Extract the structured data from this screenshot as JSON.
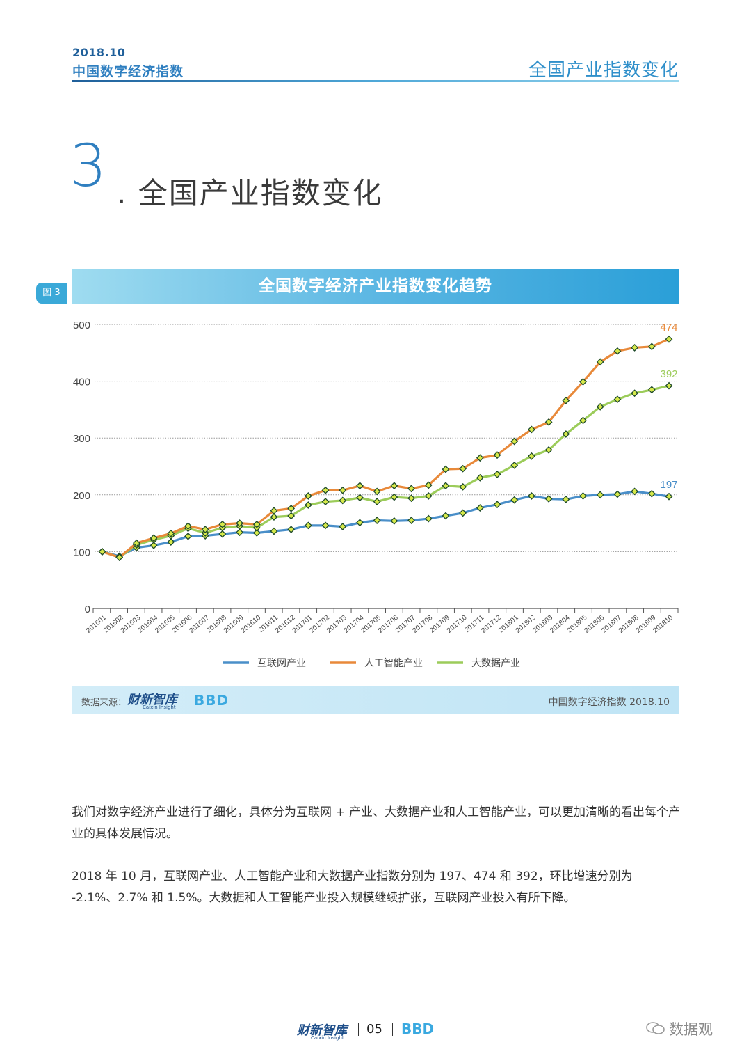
{
  "header": {
    "date": "2018.10",
    "report_title": "中国数字经济指数",
    "section_right": "全国产业指数变化"
  },
  "section": {
    "number": "3",
    "title": ". 全国产业指数变化"
  },
  "figure": {
    "tag": "图 3",
    "banner_title": "全国数字经济产业指数变化趋势"
  },
  "source": {
    "label": "数据来源：",
    "logo_text": "财新智库",
    "logo_sub": "Caixin Insight",
    "bbd_text": "BBD",
    "right_text": "中国数字经济指数 2018.10"
  },
  "paragraphs": [
    "我们对数字经济产业进行了细化，具体分为互联网 + 产业、大数据产业和人工智能产业，可以更加清晰的看出每个产业的具体发展情况。",
    "2018 年 10 月，互联网产业、人工智能产业和大数据产业指数分别为 197、474 和 392，环比增速分别为 -2.1%、2.7% 和 1.5%。大数据和人工智能产业投入规模继续扩张，互联网产业投入有所下降。"
  ],
  "footer": {
    "logo_text": "财新智库",
    "logo_sub": "Caixin Insight",
    "page": "05",
    "bbd_text": "BBD"
  },
  "watermark": {
    "text": "数据观"
  },
  "colors": {
    "internet": "#4a8fc9",
    "ai": "#e8893a",
    "bigdata": "#9ccc5a",
    "marker_fill": "#d6e94a",
    "marker_stroke": "#1e4a2a",
    "accent": "#2f8fca"
  },
  "chart_data": {
    "type": "line",
    "title": "全国数字经济产业指数变化趋势",
    "xlabel": "",
    "ylabel": "",
    "ylim": [
      0,
      500
    ],
    "yticks": [
      0,
      100,
      200,
      300,
      400,
      500
    ],
    "grid": true,
    "legend_position": "bottom",
    "categories": [
      "201601",
      "201602",
      "201603",
      "201604",
      "201605",
      "201606",
      "201607",
      "201608",
      "201609",
      "201610",
      "201611",
      "201612",
      "201701",
      "201702",
      "201703",
      "201704",
      "201705",
      "201706",
      "201707",
      "201708",
      "201709",
      "201710",
      "201711",
      "201712",
      "201801",
      "201802",
      "201803",
      "201804",
      "201805",
      "201806",
      "201807",
      "201808",
      "201809",
      "201810"
    ],
    "series": [
      {
        "name": "互联网产业",
        "key": "internet",
        "values": [
          100,
          92,
          107,
          111,
          117,
          127,
          128,
          131,
          134,
          133,
          136,
          139,
          146,
          146,
          144,
          151,
          155,
          154,
          155,
          158,
          163,
          168,
          177,
          183,
          191,
          198,
          193,
          192,
          198,
          200,
          201,
          206,
          202,
          197
        ],
        "end_label": "197"
      },
      {
        "name": "人工智能产业",
        "key": "ai",
        "values": [
          100,
          90,
          115,
          124,
          132,
          145,
          139,
          148,
          150,
          148,
          172,
          176,
          198,
          208,
          208,
          216,
          206,
          216,
          211,
          217,
          245,
          246,
          265,
          270,
          294,
          315,
          328,
          366,
          399,
          434,
          453,
          459,
          461,
          474
        ],
        "end_label": "474"
      },
      {
        "name": "大数据产业",
        "key": "bigdata",
        "values": [
          100,
          90,
          112,
          121,
          128,
          141,
          133,
          142,
          145,
          142,
          161,
          163,
          182,
          188,
          190,
          195,
          188,
          196,
          194,
          198,
          216,
          214,
          230,
          236,
          252,
          268,
          279,
          307,
          331,
          355,
          368,
          379,
          385,
          392
        ],
        "end_label": "392"
      }
    ]
  }
}
